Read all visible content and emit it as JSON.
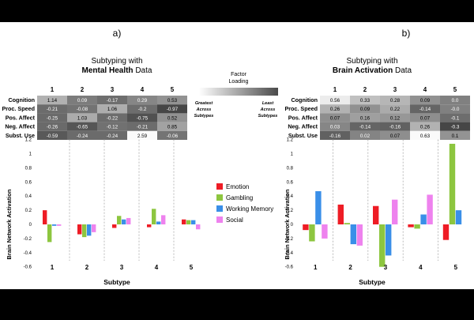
{
  "panels": [
    {
      "letter": "a)",
      "title_line1": "Subtyping with",
      "title_line2": "Mental Health Data",
      "title_bold": "Mental Health",
      "title_rest": " Data"
    },
    {
      "letter": "b)",
      "title_line1": "Subtyping with",
      "title_line2": "Brain Activation Data",
      "title_bold": "Brain Activation",
      "title_rest": " Data"
    }
  ],
  "factor_loading": {
    "title_line1": "Factor",
    "title_line2": "Loading",
    "left_label": [
      "Greatest",
      "Across",
      "Subtypes"
    ],
    "right_label": [
      "Least",
      "Across",
      "Subtypes"
    ]
  },
  "legend": [
    "Emotion",
    "Gambling",
    "Working Memory",
    "Social"
  ],
  "colors": {
    "Emotion": "#ee1c25",
    "Gambling": "#8dc63f",
    "Working Memory": "#3a8fe8",
    "Social": "#ee82ee",
    "background": "#ffffff",
    "frame": "#000000"
  },
  "chart_data": [
    {
      "type": "heatmap",
      "panel": "a",
      "columns": [
        "1",
        "2",
        "3",
        "4",
        "5"
      ],
      "rows": [
        "Cognition",
        "Proc. Speed",
        "Pos. Affect",
        "Neg. Affect",
        "Subst. Use"
      ],
      "values": [
        [
          1.14,
          0.09,
          -0.17,
          0.29,
          0.53
        ],
        [
          -0.21,
          -0.08,
          1.06,
          -0.2,
          -0.97
        ],
        [
          -0.25,
          1.03,
          -0.22,
          -0.75,
          0.52
        ],
        [
          -0.26,
          -0.65,
          -0.12,
          -0.21,
          0.85
        ],
        [
          -0.59,
          -0.24,
          -0.24,
          2.59,
          -0.06
        ]
      ],
      "labels": [
        [
          "1.14",
          "0.09",
          "-0.17",
          "0.29",
          "0.53"
        ],
        [
          "-0.21",
          "-0.08",
          "1.06",
          "-0.2",
          "-0.97"
        ],
        [
          "-0.25",
          "1.03",
          "-0.22",
          "-0.75",
          "0.52"
        ],
        [
          "-0.26",
          "-0.65",
          "-0.12",
          "-0.21",
          "0.85"
        ],
        [
          "-0.59",
          "-0.24",
          "-0.24",
          "2.59",
          "-0.06"
        ]
      ],
      "shading": "light = greatest, dark = least"
    },
    {
      "type": "heatmap",
      "panel": "b",
      "columns": [
        "1",
        "2",
        "3",
        "4",
        "5"
      ],
      "rows": [
        "Cognition",
        "Proc. Speed",
        "Pos. Affect",
        "Neg. Affect",
        "Subst. Use"
      ],
      "values": [
        [
          0.56,
          0.33,
          0.28,
          0.09,
          0.0
        ],
        [
          0.26,
          0.09,
          0.22,
          -0.14,
          -0.0
        ],
        [
          0.07,
          0.16,
          0.12,
          0.07,
          -0.1
        ],
        [
          0.03,
          -0.14,
          -0.16,
          0.26,
          -0.3
        ],
        [
          -0.16,
          0.02,
          0.07,
          0.63,
          0.1
        ]
      ],
      "labels": [
        [
          "0.56",
          "0.33",
          "0.28",
          "0.09",
          "0.0"
        ],
        [
          "0.26",
          "0.09",
          "0.22",
          "-0.14",
          "-0.0"
        ],
        [
          "0.07",
          "0.16",
          "0.12",
          "0.07",
          "-0.1"
        ],
        [
          "0.03",
          "-0.14",
          "-0.16",
          "0.26",
          "-0.3"
        ],
        [
          "-0.16",
          "0.02",
          "0.07",
          "0.63",
          "0.1"
        ]
      ],
      "shading": "light = greatest, dark = least"
    },
    {
      "type": "bar",
      "panel": "a",
      "categories": [
        "1",
        "2",
        "3",
        "4",
        "5"
      ],
      "xlabel": "Subtype",
      "ylabel": "Brain Network Activation",
      "ylim": [
        -0.6,
        1.2
      ],
      "yticks": [
        -0.6,
        -0.4,
        -0.2,
        0,
        0.2,
        0.4,
        0.6,
        0.8,
        1,
        1.2
      ],
      "series": [
        {
          "name": "Emotion",
          "values": [
            0.2,
            -0.14,
            -0.05,
            -0.04,
            0.07
          ]
        },
        {
          "name": "Gambling",
          "values": [
            -0.25,
            -0.18,
            0.12,
            0.22,
            0.06
          ]
        },
        {
          "name": "Working Memory",
          "values": [
            -0.02,
            -0.16,
            0.07,
            0.04,
            0.06
          ]
        },
        {
          "name": "Social",
          "values": [
            -0.02,
            -0.11,
            0.09,
            0.13,
            -0.07
          ]
        }
      ]
    },
    {
      "type": "bar",
      "panel": "b",
      "categories": [
        "1",
        "2",
        "3",
        "4",
        "5"
      ],
      "xlabel": "Subtype",
      "ylabel": "Brain Network Activation",
      "ylim": [
        -0.6,
        1.2
      ],
      "yticks": [
        -0.6,
        -0.4,
        -0.2,
        0,
        0.2,
        0.4,
        0.6,
        0.8,
        1,
        1.2
      ],
      "series": [
        {
          "name": "Emotion",
          "values": [
            -0.08,
            0.28,
            0.26,
            -0.04,
            -0.22
          ]
        },
        {
          "name": "Gambling",
          "values": [
            -0.24,
            0.02,
            -0.6,
            -0.06,
            1.14
          ]
        },
        {
          "name": "Working Memory",
          "values": [
            0.47,
            -0.28,
            -0.44,
            0.14,
            0.2
          ]
        },
        {
          "name": "Social",
          "values": [
            -0.2,
            -0.3,
            0.35,
            0.42,
            null
          ]
        }
      ]
    }
  ]
}
